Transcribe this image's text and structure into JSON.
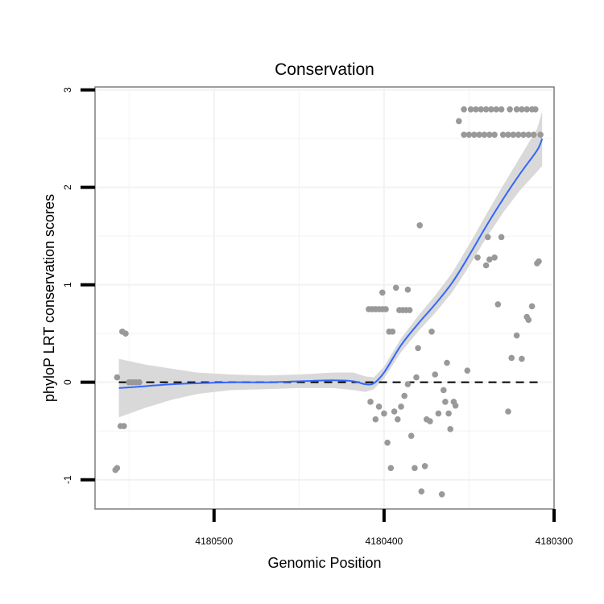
{
  "chart_data": {
    "type": "scatter",
    "title": "Conservation",
    "xlabel": "Genomic Position",
    "ylabel": "phyloP LRT conservation scores",
    "x_reversed": true,
    "xlim": [
      4180570,
      4180300
    ],
    "ylim": [
      -1.3,
      3.03
    ],
    "x_ticks": [
      {
        "value": 4180500,
        "label": "4180500"
      },
      {
        "value": 4180400,
        "label": "4180400"
      },
      {
        "value": 4180300,
        "label": "4180300"
      }
    ],
    "y_ticks": [
      {
        "value": -1,
        "label": "-1"
      },
      {
        "value": 0,
        "label": "0"
      },
      {
        "value": 1,
        "label": "1"
      },
      {
        "value": 2,
        "label": "2"
      },
      {
        "value": 3,
        "label": "3"
      }
    ],
    "grid": true,
    "reference_line": {
      "y": 0,
      "style": "dashed",
      "color": "#000000"
    },
    "colors": {
      "points": "#999999",
      "smooth_line": "#3366FF",
      "ribbon": "#D9D9D9",
      "panel_border": "#7F7F7F",
      "grid": "#F2F2F2"
    },
    "points": [
      {
        "x": 4180558,
        "y": -0.9
      },
      {
        "x": 4180557,
        "y": -0.88
      },
      {
        "x": 4180557,
        "y": 0.05
      },
      {
        "x": 4180554,
        "y": 0.52
      },
      {
        "x": 4180552,
        "y": 0.5
      },
      {
        "x": 4180555,
        "y": -0.45
      },
      {
        "x": 4180553,
        "y": -0.45
      },
      {
        "x": 4180550,
        "y": 0.0
      },
      {
        "x": 4180548,
        "y": 0.0
      },
      {
        "x": 4180546,
        "y": 0.0
      },
      {
        "x": 4180544,
        "y": 0.0
      },
      {
        "x": 4180409,
        "y": 0.75
      },
      {
        "x": 4180407,
        "y": 0.75
      },
      {
        "x": 4180405,
        "y": 0.75
      },
      {
        "x": 4180403,
        "y": 0.75
      },
      {
        "x": 4180401,
        "y": 0.75
      },
      {
        "x": 4180399,
        "y": 0.75
      },
      {
        "x": 4180401,
        "y": 0.92
      },
      {
        "x": 4180393,
        "y": 0.97
      },
      {
        "x": 4180391,
        "y": 0.74
      },
      {
        "x": 4180389,
        "y": 0.74
      },
      {
        "x": 4180387,
        "y": 0.74
      },
      {
        "x": 4180385,
        "y": 0.74
      },
      {
        "x": 4180386,
        "y": 0.95
      },
      {
        "x": 4180397,
        "y": 0.52
      },
      {
        "x": 4180395,
        "y": 0.52
      },
      {
        "x": 4180408,
        "y": -0.2
      },
      {
        "x": 4180405,
        "y": -0.38
      },
      {
        "x": 4180403,
        "y": -0.25
      },
      {
        "x": 4180400,
        "y": -0.32
      },
      {
        "x": 4180398,
        "y": -0.62
      },
      {
        "x": 4180396,
        "y": -0.88
      },
      {
        "x": 4180394,
        "y": -0.3
      },
      {
        "x": 4180392,
        "y": -0.38
      },
      {
        "x": 4180390,
        "y": -0.25
      },
      {
        "x": 4180388,
        "y": -0.14
      },
      {
        "x": 4180386,
        "y": -0.02
      },
      {
        "x": 4180384,
        "y": -0.55
      },
      {
        "x": 4180382,
        "y": -0.88
      },
      {
        "x": 4180381,
        "y": 0.05
      },
      {
        "x": 4180380,
        "y": 0.35
      },
      {
        "x": 4180379,
        "y": 1.61
      },
      {
        "x": 4180378,
        "y": -1.12
      },
      {
        "x": 4180376,
        "y": -0.86
      },
      {
        "x": 4180375,
        "y": -0.38
      },
      {
        "x": 4180373,
        "y": -0.4
      },
      {
        "x": 4180372,
        "y": 0.52
      },
      {
        "x": 4180370,
        "y": 0.08
      },
      {
        "x": 4180368,
        "y": -0.32
      },
      {
        "x": 4180366,
        "y": -1.15
      },
      {
        "x": 4180365,
        "y": -0.08
      },
      {
        "x": 4180364,
        "y": -0.2
      },
      {
        "x": 4180363,
        "y": 0.2
      },
      {
        "x": 4180362,
        "y": -0.32
      },
      {
        "x": 4180361,
        "y": -0.48
      },
      {
        "x": 4180359,
        "y": -0.2
      },
      {
        "x": 4180358,
        "y": -0.24
      },
      {
        "x": 4180356,
        "y": 2.68
      },
      {
        "x": 4180351,
        "y": 0.12
      },
      {
        "x": 4180345,
        "y": 1.28
      },
      {
        "x": 4180353,
        "y": 2.8
      },
      {
        "x": 4180349,
        "y": 2.8
      },
      {
        "x": 4180346,
        "y": 2.8
      },
      {
        "x": 4180343,
        "y": 2.8
      },
      {
        "x": 4180340,
        "y": 2.8
      },
      {
        "x": 4180337,
        "y": 2.8
      },
      {
        "x": 4180334,
        "y": 2.8
      },
      {
        "x": 4180331,
        "y": 2.8
      },
      {
        "x": 4180326,
        "y": 2.8
      },
      {
        "x": 4180322,
        "y": 2.8
      },
      {
        "x": 4180319,
        "y": 2.8
      },
      {
        "x": 4180316,
        "y": 2.8
      },
      {
        "x": 4180313,
        "y": 2.8
      },
      {
        "x": 4180311,
        "y": 2.8
      },
      {
        "x": 4180353,
        "y": 2.54
      },
      {
        "x": 4180350,
        "y": 2.54
      },
      {
        "x": 4180347,
        "y": 2.54
      },
      {
        "x": 4180344,
        "y": 2.54
      },
      {
        "x": 4180341,
        "y": 2.54
      },
      {
        "x": 4180338,
        "y": 2.54
      },
      {
        "x": 4180335,
        "y": 2.54
      },
      {
        "x": 4180330,
        "y": 2.54
      },
      {
        "x": 4180327,
        "y": 2.54
      },
      {
        "x": 4180324,
        "y": 2.54
      },
      {
        "x": 4180321,
        "y": 2.54
      },
      {
        "x": 4180318,
        "y": 2.54
      },
      {
        "x": 4180315,
        "y": 2.54
      },
      {
        "x": 4180312,
        "y": 2.54
      },
      {
        "x": 4180308,
        "y": 2.54
      },
      {
        "x": 4180340,
        "y": 1.2
      },
      {
        "x": 4180338,
        "y": 1.26
      },
      {
        "x": 4180335,
        "y": 1.28
      },
      {
        "x": 4180333,
        "y": 0.8
      },
      {
        "x": 4180339,
        "y": 1.49
      },
      {
        "x": 4180331,
        "y": 1.49
      },
      {
        "x": 4180327,
        "y": -0.3
      },
      {
        "x": 4180325,
        "y": 0.25
      },
      {
        "x": 4180322,
        "y": 0.48
      },
      {
        "x": 4180319,
        "y": 0.24
      },
      {
        "x": 4180316,
        "y": 0.67
      },
      {
        "x": 4180315,
        "y": 0.64
      },
      {
        "x": 4180313,
        "y": 0.78
      },
      {
        "x": 4180310,
        "y": 1.22
      },
      {
        "x": 4180309,
        "y": 1.24
      }
    ],
    "smooth": [
      {
        "x": 4180556,
        "y": -0.06
      },
      {
        "x": 4180540,
        "y": -0.04
      },
      {
        "x": 4180525,
        "y": -0.02
      },
      {
        "x": 4180510,
        "y": -0.01
      },
      {
        "x": 4180490,
        "y": 0.0
      },
      {
        "x": 4180470,
        "y": 0.0
      },
      {
        "x": 4180450,
        "y": 0.01
      },
      {
        "x": 4180430,
        "y": 0.02
      },
      {
        "x": 4180418,
        "y": 0.01
      },
      {
        "x": 4180411,
        "y": -0.02
      },
      {
        "x": 4180406,
        "y": -0.01
      },
      {
        "x": 4180400,
        "y": 0.1
      },
      {
        "x": 4180390,
        "y": 0.38
      },
      {
        "x": 4180380,
        "y": 0.6
      },
      {
        "x": 4180370,
        "y": 0.8
      },
      {
        "x": 4180360,
        "y": 1.02
      },
      {
        "x": 4180350,
        "y": 1.3
      },
      {
        "x": 4180340,
        "y": 1.6
      },
      {
        "x": 4180330,
        "y": 1.88
      },
      {
        "x": 4180320,
        "y": 2.14
      },
      {
        "x": 4180310,
        "y": 2.38
      },
      {
        "x": 4180307,
        "y": 2.5
      }
    ],
    "ribbon_halfwidth": [
      0.3,
      0.22,
      0.16,
      0.11,
      0.08,
      0.07,
      0.07,
      0.08,
      0.09,
      0.08,
      0.06,
      0.06,
      0.07,
      0.08,
      0.09,
      0.1,
      0.11,
      0.12,
      0.14,
      0.17,
      0.22,
      0.28
    ]
  }
}
